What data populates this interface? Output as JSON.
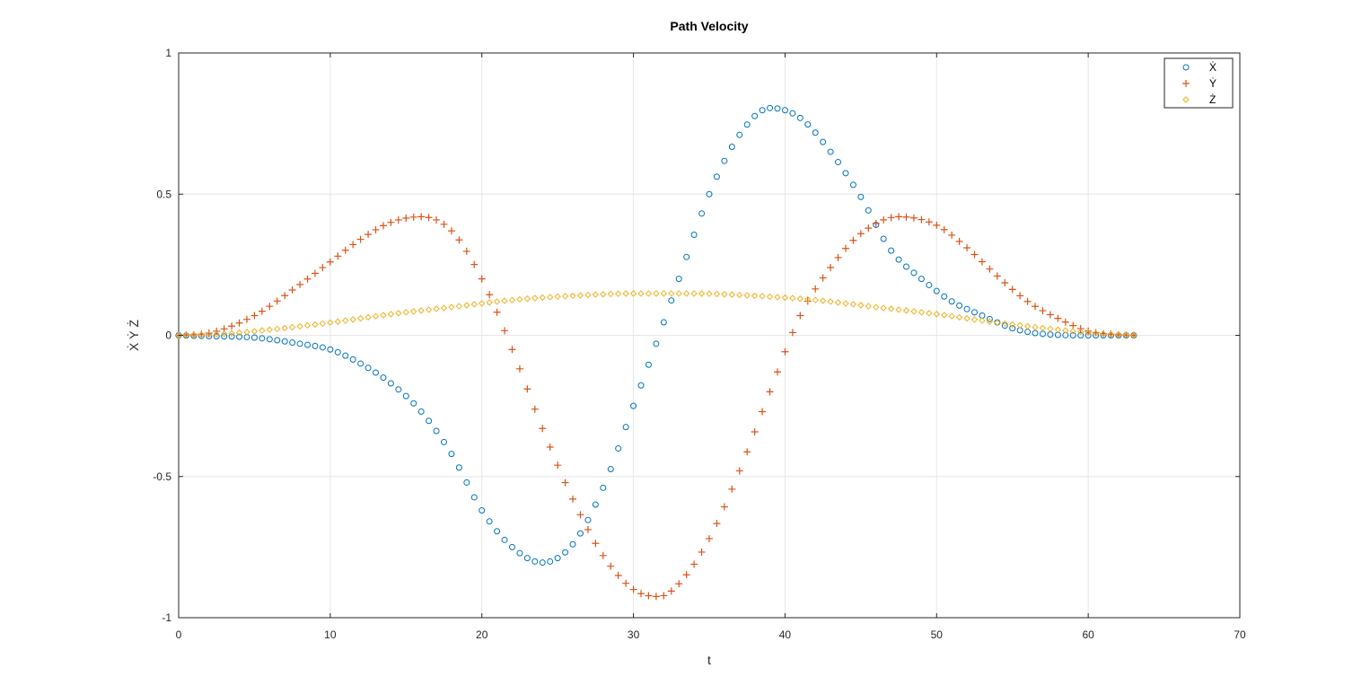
{
  "chart_data": {
    "type": "scatter",
    "title": "Path Velocity",
    "xlabel": "t",
    "ylabel": "Ẋ Ẏ Ż",
    "xlim": [
      0,
      70
    ],
    "ylim": [
      -1,
      1
    ],
    "xticks": [
      0,
      10,
      20,
      30,
      40,
      50,
      60,
      70
    ],
    "yticks": [
      -1,
      -0.5,
      0,
      0.5,
      1
    ],
    "grid": true,
    "legend_position": "top-right",
    "t_range": [
      0,
      63.1
    ],
    "sample_step": 0.5,
    "series": [
      {
        "name": "Ẋ",
        "marker": "circle",
        "color": "#0072BD",
        "keypoints": [
          [
            0,
            0
          ],
          [
            2,
            -0.003
          ],
          [
            5,
            -0.008
          ],
          [
            8,
            -0.03
          ],
          [
            10,
            -0.05
          ],
          [
            12,
            -0.1
          ],
          [
            14,
            -0.17
          ],
          [
            16,
            -0.27
          ],
          [
            18,
            -0.42
          ],
          [
            20,
            -0.62
          ],
          [
            22,
            -0.75
          ],
          [
            24,
            -0.805
          ],
          [
            26,
            -0.74
          ],
          [
            28,
            -0.54
          ],
          [
            30,
            -0.25
          ],
          [
            31.5,
            -0.03
          ],
          [
            33,
            0.2
          ],
          [
            35,
            0.5
          ],
          [
            37,
            0.71
          ],
          [
            39,
            0.805
          ],
          [
            41,
            0.77
          ],
          [
            43,
            0.65
          ],
          [
            45,
            0.49
          ],
          [
            47,
            0.3
          ],
          [
            49,
            0.2
          ],
          [
            51,
            0.12
          ],
          [
            53,
            0.07
          ],
          [
            55,
            0.025
          ],
          [
            57,
            0.005
          ],
          [
            60,
            0
          ],
          [
            63,
            0
          ]
        ]
      },
      {
        "name": "Ẏ",
        "marker": "plus",
        "color": "#D95319",
        "keypoints": [
          [
            0,
            0
          ],
          [
            2,
            0.008
          ],
          [
            5,
            0.07
          ],
          [
            8,
            0.18
          ],
          [
            10,
            0.26
          ],
          [
            12,
            0.34
          ],
          [
            14,
            0.4
          ],
          [
            16,
            0.42
          ],
          [
            18,
            0.37
          ],
          [
            20,
            0.2
          ],
          [
            22,
            -0.05
          ],
          [
            24,
            -0.33
          ],
          [
            26,
            -0.58
          ],
          [
            28,
            -0.78
          ],
          [
            30,
            -0.9
          ],
          [
            31.7,
            -0.925
          ],
          [
            33,
            -0.88
          ],
          [
            35,
            -0.72
          ],
          [
            37,
            -0.48
          ],
          [
            39,
            -0.2
          ],
          [
            41,
            0.07
          ],
          [
            43,
            0.24
          ],
          [
            45,
            0.36
          ],
          [
            47.5,
            0.42
          ],
          [
            50,
            0.39
          ],
          [
            52,
            0.31
          ],
          [
            54,
            0.21
          ],
          [
            56,
            0.12
          ],
          [
            58,
            0.06
          ],
          [
            60,
            0.015
          ],
          [
            62,
            0.002
          ],
          [
            63,
            0
          ]
        ]
      },
      {
        "name": "Ż",
        "marker": "diamond",
        "color": "#EDB120",
        "keypoints": [
          [
            0,
            0
          ],
          [
            3,
            0.005
          ],
          [
            6,
            0.02
          ],
          [
            10,
            0.045
          ],
          [
            14,
            0.075
          ],
          [
            18,
            0.1
          ],
          [
            22,
            0.125
          ],
          [
            26,
            0.14
          ],
          [
            30,
            0.148
          ],
          [
            34,
            0.148
          ],
          [
            38,
            0.14
          ],
          [
            42,
            0.125
          ],
          [
            46,
            0.1
          ],
          [
            50,
            0.075
          ],
          [
            54,
            0.045
          ],
          [
            58,
            0.02
          ],
          [
            61,
            0.005
          ],
          [
            63,
            0
          ]
        ]
      }
    ]
  }
}
